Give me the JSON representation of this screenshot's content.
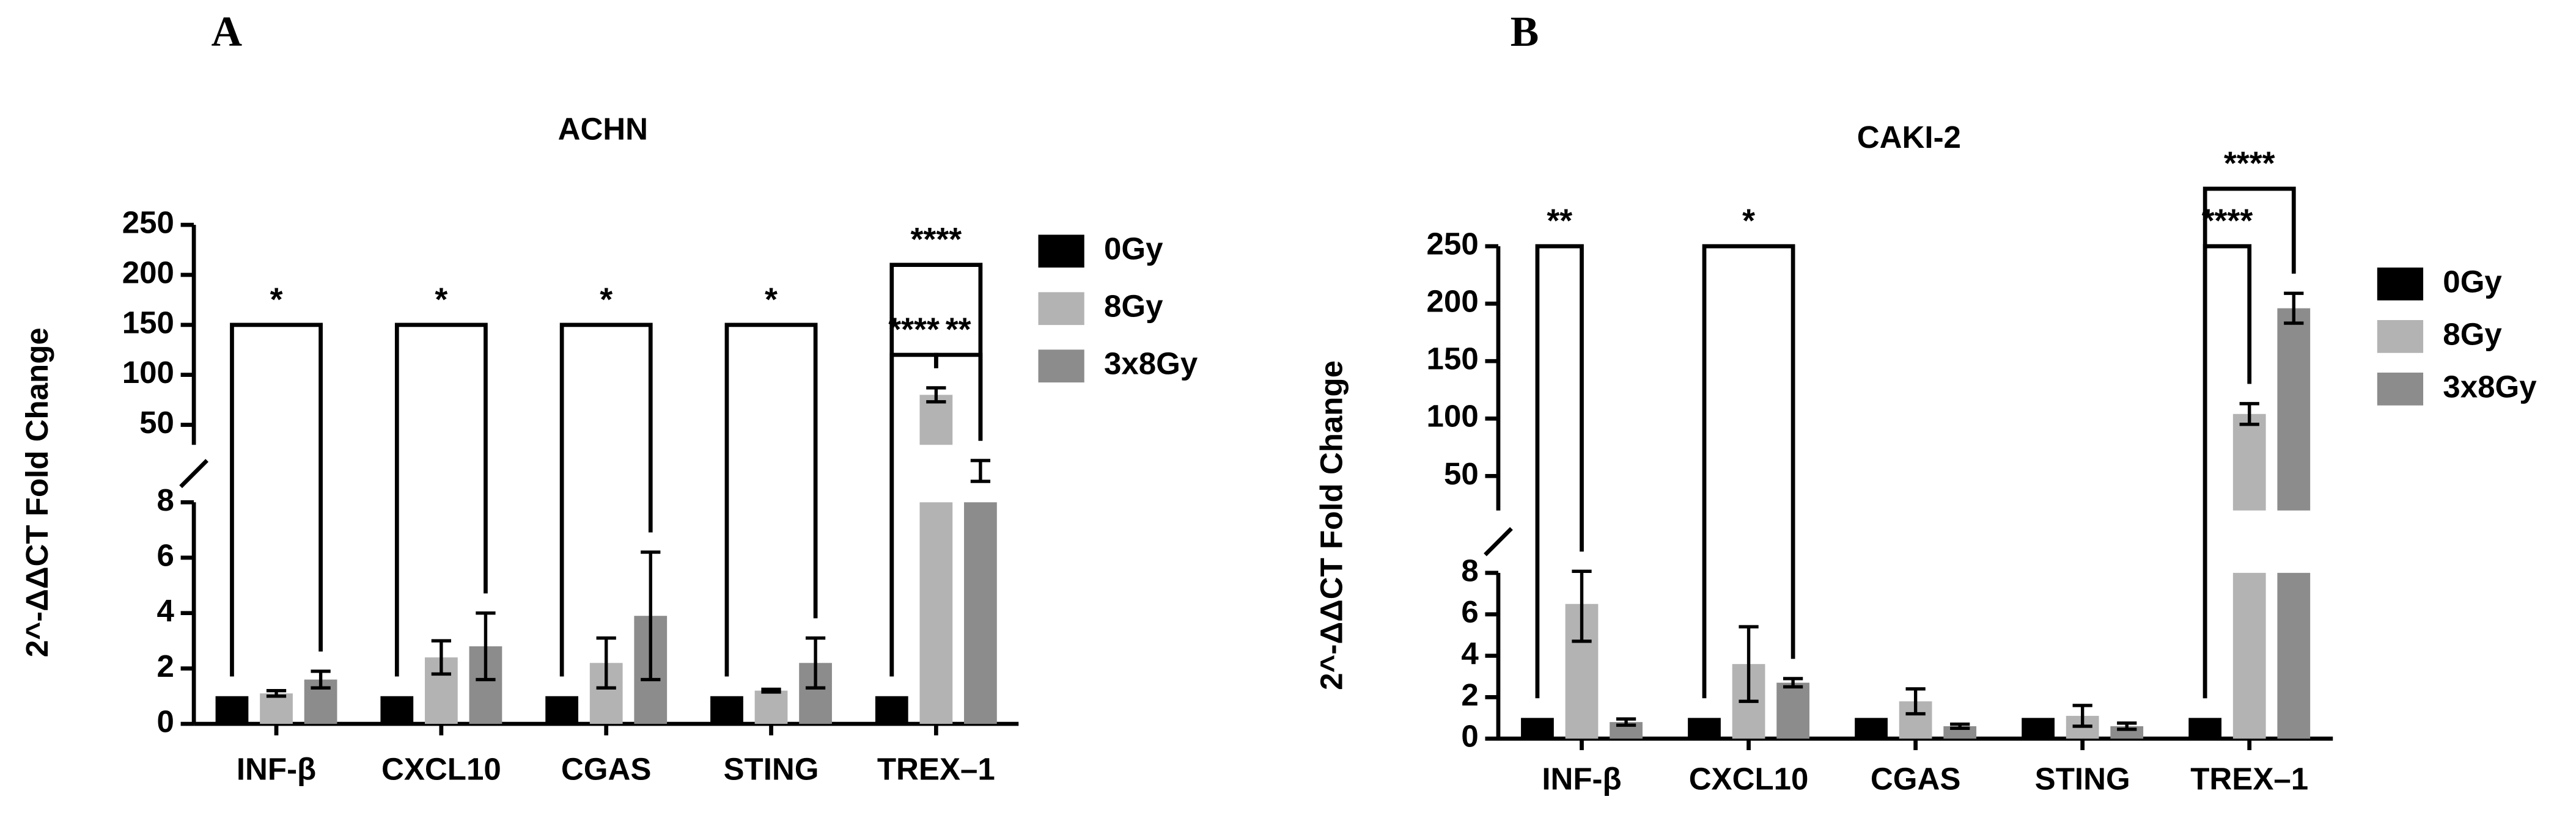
{
  "panels": [
    "A",
    "B"
  ],
  "chart_data": [
    {
      "type": "bar",
      "title": "ACHN",
      "y_label": "2^-ΔΔCT Fold Change",
      "categories": [
        "INF-β",
        "CXCL10",
        "CGAS",
        "STING",
        "TREX–1"
      ],
      "series": [
        {
          "name": "0Gy",
          "color": "#000000",
          "values": [
            1,
            1,
            1,
            1,
            1
          ],
          "errors": [
            0,
            0,
            0,
            0,
            0
          ]
        },
        {
          "name": "8Gy",
          "color": "#b3b3b3",
          "values": [
            1.1,
            2.4,
            2.2,
            1.2,
            80
          ],
          "errors": [
            0.1,
            0.6,
            0.9,
            0.05,
            7
          ]
        },
        {
          "name": "3x8Gy",
          "color": "#8c8c8c",
          "values": [
            1.6,
            2.8,
            3.9,
            2.2,
            20
          ],
          "errors": [
            0.3,
            1.2,
            2.3,
            0.9,
            4
          ]
        }
      ],
      "y_segments": [
        {
          "ylim": [
            0,
            8
          ],
          "yticks": [
            0,
            2,
            4,
            6,
            8
          ]
        },
        {
          "ylim": [
            30,
            250
          ],
          "yticks": [
            50,
            100,
            150,
            200,
            250
          ]
        }
      ],
      "significance": [
        {
          "label": "*",
          "category": 0,
          "from": 0,
          "to": 2,
          "y": 150
        },
        {
          "label": "*",
          "category": 1,
          "from": 0,
          "to": 2,
          "y": 150
        },
        {
          "label": "*",
          "category": 2,
          "from": 0,
          "to": 2,
          "y": 150
        },
        {
          "label": "*",
          "category": 3,
          "from": 0,
          "to": 2,
          "y": 150
        },
        {
          "label": "****",
          "category": 4,
          "from": 0,
          "to": 1,
          "y": 120
        },
        {
          "label": "**",
          "category": 4,
          "from": 1,
          "to": 2,
          "y": 120
        },
        {
          "label": "****",
          "category": 4,
          "from": 0,
          "to": 2,
          "y": 210
        }
      ]
    },
    {
      "type": "bar",
      "title": "CAKI-2",
      "y_label": "2^-ΔΔCT Fold Change",
      "categories": [
        "INF-β",
        "CXCL10",
        "CGAS",
        "STING",
        "TREX–1"
      ],
      "series": [
        {
          "name": "0Gy",
          "color": "#000000",
          "values": [
            1,
            1,
            1,
            1,
            1
          ],
          "errors": [
            0,
            0,
            0,
            0,
            0
          ]
        },
        {
          "name": "8Gy",
          "color": "#b3b3b3",
          "values": [
            6.5,
            3.6,
            1.8,
            1.1,
            104
          ],
          "errors": [
            1.8,
            1.8,
            0.6,
            0.5,
            9
          ]
        },
        {
          "name": "3x8Gy",
          "color": "#8c8c8c",
          "values": [
            0.8,
            2.7,
            0.6,
            0.6,
            196
          ],
          "errors": [
            0.15,
            0.2,
            0.1,
            0.15,
            13
          ]
        }
      ],
      "y_segments": [
        {
          "ylim": [
            0,
            8
          ],
          "yticks": [
            0,
            2,
            4,
            6,
            8
          ]
        },
        {
          "ylim": [
            20,
            250
          ],
          "yticks": [
            50,
            100,
            150,
            200,
            250
          ]
        }
      ],
      "significance": [
        {
          "label": "**",
          "category": 0,
          "from": 0,
          "to": 1,
          "y": 250
        },
        {
          "label": "*",
          "category": 1,
          "from": 0,
          "to": 2,
          "y": 250
        },
        {
          "label": "****",
          "category": 4,
          "from": 0,
          "to": 1,
          "y": 250
        },
        {
          "label": "****",
          "category": 4,
          "from": 0,
          "to": 2,
          "y": 300
        }
      ]
    }
  ]
}
